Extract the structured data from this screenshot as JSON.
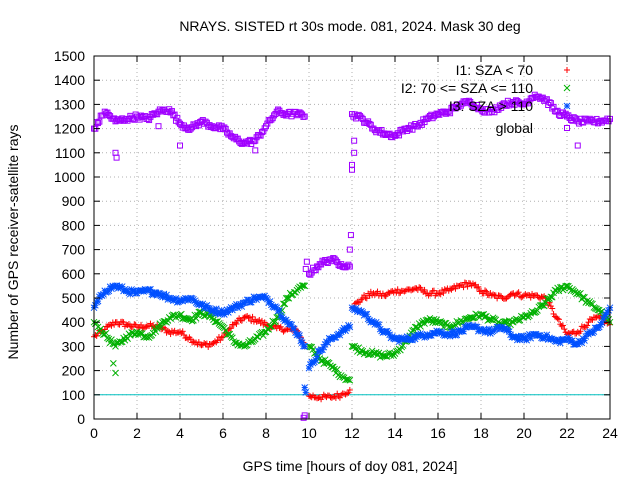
{
  "chart_data": {
    "type": "scatter",
    "title": "NRAYS. SISTED rt 30s mode. 081, 2024. Mask 30 deg",
    "xlabel": "GPS time [hours of doy 081, 2024]",
    "ylabel": "Number of GPS receiver-satellite rays",
    "xlim": [
      0,
      24
    ],
    "ylim": [
      0,
      1500
    ],
    "xticks": [
      "0",
      "2",
      "4",
      "6",
      "8",
      "10",
      "12",
      "14",
      "16",
      "18",
      "20",
      "22",
      "24"
    ],
    "yticks": [
      "0",
      "100",
      "200",
      "300",
      "400",
      "500",
      "600",
      "700",
      "800",
      "900",
      "1000",
      "1100",
      "1200",
      "1300",
      "1400",
      "1500"
    ],
    "grid": true,
    "legend_position": "top-right",
    "reference_line": {
      "y": 100,
      "color": "#00c0c0"
    },
    "series": [
      {
        "name": "I1: SZA < 70",
        "marker": "+",
        "color": "#ff0000",
        "x": [
          0,
          0.5,
          1,
          1.5,
          2,
          2.5,
          3,
          3.5,
          4,
          4.5,
          5,
          5.5,
          6,
          6.5,
          7,
          7.5,
          8,
          8.5,
          9,
          9.5,
          9.8,
          10,
          10.5,
          11,
          11.5,
          11.9,
          12,
          12.5,
          13,
          13.5,
          14,
          14.5,
          15,
          15.5,
          16,
          16.5,
          17,
          17.5,
          18,
          18.5,
          19,
          19.5,
          20,
          20.5,
          21,
          21.5,
          22,
          22.5,
          23,
          23.5,
          24
        ],
        "y": [
          340,
          370,
          400,
          390,
          380,
          385,
          380,
          360,
          360,
          330,
          305,
          310,
          340,
          390,
          420,
          410,
          390,
          375,
          370,
          360,
          300,
          95,
          90,
          90,
          100,
          120,
          460,
          500,
          520,
          510,
          530,
          530,
          540,
          520,
          520,
          530,
          550,
          560,
          530,
          510,
          500,
          520,
          510,
          510,
          500,
          420,
          350,
          360,
          400,
          420,
          390
        ]
      },
      {
        "name": "I2: 70 <= SZA <= 110",
        "marker": "x",
        "color": "#00b000",
        "x": [
          0,
          0.5,
          1,
          1.5,
          2,
          2.5,
          3,
          3.5,
          4,
          4.5,
          5,
          5.5,
          6,
          6.5,
          7,
          7.5,
          8,
          8.5,
          9,
          9.5,
          9.8,
          10,
          10.5,
          11,
          11.5,
          11.9,
          12,
          12.5,
          13,
          13.5,
          14,
          14.5,
          15,
          15.5,
          16,
          16.5,
          17,
          17.5,
          18,
          18.5,
          19,
          19.5,
          20,
          20.5,
          21,
          21.5,
          22,
          22.5,
          23,
          23.5,
          24
        ],
        "y": [
          400,
          350,
          300,
          340,
          360,
          340,
          380,
          420,
          430,
          410,
          440,
          420,
          380,
          320,
          300,
          330,
          360,
          420,
          500,
          540,
          550,
          300,
          250,
          220,
          180,
          160,
          300,
          280,
          270,
          260,
          270,
          320,
          380,
          410,
          400,
          380,
          400,
          420,
          430,
          410,
          390,
          400,
          420,
          440,
          480,
          530,
          550,
          520,
          480,
          450,
          400
        ]
      },
      {
        "name": "I3: SZA > 110",
        "marker": "*",
        "color": "#0050ff",
        "x": [
          0,
          0.5,
          1,
          1.5,
          2,
          2.5,
          3,
          3.5,
          4,
          4.5,
          5,
          5.5,
          6,
          6.5,
          7,
          7.5,
          8,
          8.5,
          9,
          9.5,
          9.8,
          10,
          10.5,
          11,
          11.5,
          11.9,
          12,
          12.5,
          13,
          13.5,
          14,
          14.5,
          15,
          15.5,
          16,
          16.5,
          17,
          17.5,
          18,
          18.5,
          19,
          19.5,
          20,
          20.5,
          21,
          21.5,
          22,
          22.5,
          23,
          23.5,
          24
        ],
        "y": [
          460,
          530,
          550,
          530,
          520,
          530,
          520,
          500,
          490,
          500,
          470,
          450,
          440,
          460,
          480,
          500,
          500,
          460,
          400,
          350,
          300,
          210,
          280,
          330,
          360,
          380,
          460,
          440,
          400,
          360,
          330,
          330,
          340,
          350,
          360,
          350,
          360,
          380,
          370,
          360,
          380,
          340,
          330,
          350,
          340,
          320,
          330,
          310,
          350,
          380,
          460
        ]
      },
      {
        "name": "global",
        "marker": "square",
        "color": "#a000ff",
        "x": [
          0,
          0.5,
          1,
          1.5,
          2,
          2.5,
          3,
          3.5,
          4,
          4.5,
          5,
          5.5,
          6,
          6.5,
          7,
          7.5,
          8,
          8.5,
          9,
          9.5,
          9.8,
          10,
          10.5,
          11,
          11.5,
          11.9,
          12,
          12.5,
          13,
          13.5,
          14,
          14.5,
          15,
          15.5,
          16,
          16.5,
          17,
          17.5,
          18,
          18.5,
          19,
          19.5,
          20,
          20.5,
          21,
          21.5,
          22,
          22.5,
          23,
          23.5,
          24
        ],
        "y": [
          1200,
          1270,
          1230,
          1240,
          1250,
          1240,
          1270,
          1280,
          1220,
          1200,
          1230,
          1210,
          1200,
          1160,
          1140,
          1150,
          1210,
          1270,
          1260,
          1260,
          1250,
          600,
          640,
          660,
          640,
          630,
          1260,
          1240,
          1200,
          1180,
          1170,
          1200,
          1210,
          1240,
          1260,
          1270,
          1300,
          1310,
          1280,
          1270,
          1300,
          1310,
          1300,
          1340,
          1320,
          1270,
          1250,
          1230,
          1230,
          1230,
          1240
        ]
      }
    ],
    "outliers": [
      {
        "series": 3,
        "x": [
          1,
          1.05,
          4,
          7.5,
          22.5,
          3
        ],
        "y": [
          1100,
          1080,
          1130,
          1110,
          1130,
          1210
        ]
      },
      {
        "series": 3,
        "x": [
          9.75,
          9.8,
          9.85,
          9.9,
          11.9,
          11.95,
          12,
          12,
          12.1,
          12.1
        ],
        "y": [
          5,
          15,
          620,
          650,
          700,
          760,
          1050,
          1030,
          1100,
          1150
        ]
      },
      {
        "series": 1,
        "x": [
          0.9,
          1.0
        ],
        "y": [
          230,
          190
        ]
      },
      {
        "series": 2,
        "x": [
          9.8,
          9.85
        ],
        "y": [
          130,
          110
        ]
      }
    ]
  }
}
